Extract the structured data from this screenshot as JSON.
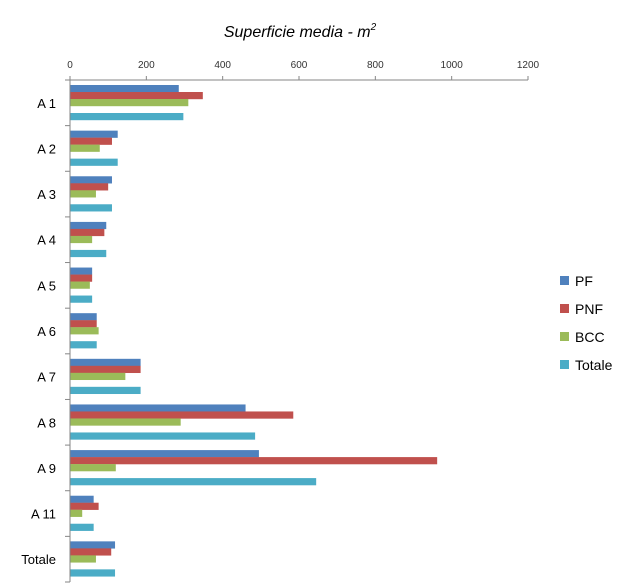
{
  "chart_data": {
    "type": "bar",
    "orientation": "horizontal",
    "title": "Superficie media - m",
    "title_superscript": "2",
    "xlabel": "",
    "ylabel": "",
    "xlim": [
      0,
      1200
    ],
    "x_ticks": [
      "0",
      "200",
      "400",
      "600",
      "800",
      "1000",
      "1200"
    ],
    "x_axis_position": "top",
    "grid": false,
    "legend_position": "right",
    "categories": [
      "A 1",
      "A 2",
      "A 3",
      "A 4",
      "A 5",
      "A 6",
      "A 7",
      "A 8",
      "A 9",
      "A 11",
      "Totale"
    ],
    "series": [
      {
        "name": "PF",
        "color": "#4F81BD",
        "values": [
          285,
          125,
          110,
          95,
          58,
          70,
          185,
          460,
          495,
          62,
          118
        ]
      },
      {
        "name": "PNF",
        "color": "#C0504D",
        "values": [
          348,
          110,
          100,
          90,
          58,
          70,
          185,
          585,
          962,
          75,
          108
        ]
      },
      {
        "name": "BCC",
        "color": "#9BBB59",
        "values": [
          310,
          78,
          68,
          58,
          52,
          75,
          145,
          290,
          120,
          32,
          68
        ]
      },
      {
        "name": "Totale",
        "color": "#4BACC6",
        "values": [
          297,
          125,
          110,
          95,
          58,
          70,
          185,
          485,
          645,
          62,
          118
        ]
      }
    ]
  }
}
